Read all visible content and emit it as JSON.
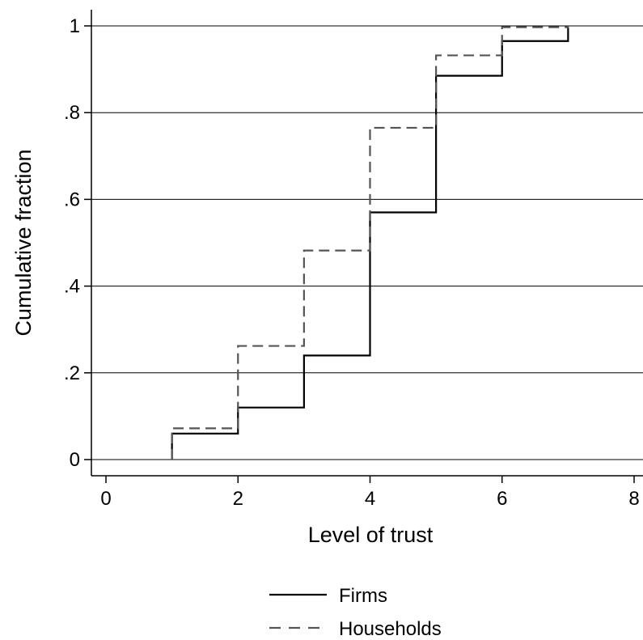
{
  "chart_data": {
    "type": "line",
    "step": true,
    "title": "",
    "xlabel": "Level of trust",
    "ylabel": "Cumulative fraction",
    "xlim": [
      0,
      8
    ],
    "ylim": [
      0,
      1
    ],
    "xticks": [
      0,
      2,
      4,
      6,
      8
    ],
    "xtick_labels": [
      "0",
      "2",
      "4",
      "6",
      "8"
    ],
    "yticks": [
      0,
      0.2,
      0.4,
      0.6,
      0.8,
      1
    ],
    "ytick_labels": [
      "0",
      ".2",
      ".4",
      ".6",
      ".8",
      "1"
    ],
    "grid": "horizontal",
    "legend_position": "bottom",
    "series": [
      {
        "name": "Firms",
        "style": "solid",
        "color": "#000000",
        "x": [
          1,
          2,
          3,
          4,
          5,
          6,
          7
        ],
        "y": [
          0.06,
          0.12,
          0.24,
          0.57,
          0.885,
          0.965,
          1.0
        ]
      },
      {
        "name": "Households",
        "style": "dashed",
        "color": "#555555",
        "x": [
          1,
          2,
          3,
          4,
          5,
          6,
          7
        ],
        "y": [
          0.072,
          0.262,
          0.482,
          0.765,
          0.932,
          0.997,
          1.0
        ]
      }
    ]
  }
}
